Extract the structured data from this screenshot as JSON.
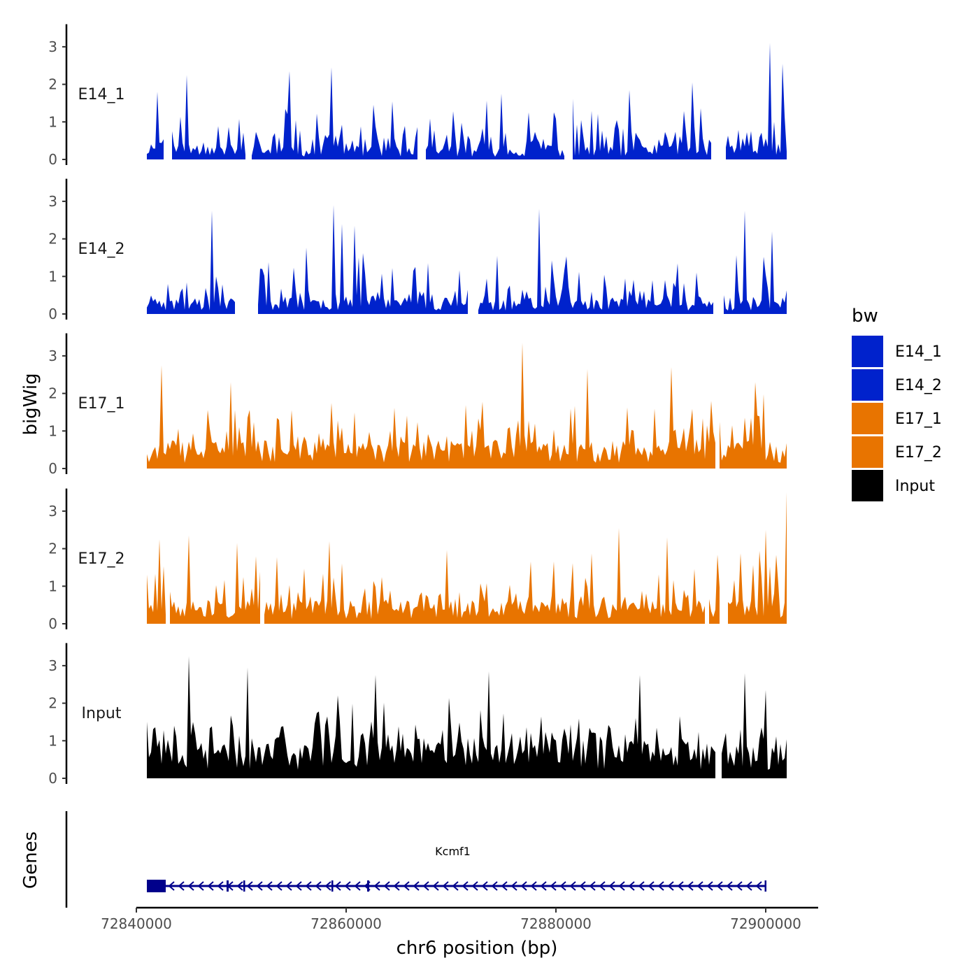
{
  "chart_data": {
    "type": "area",
    "title": "",
    "xlabel": "chr6 position (bp)",
    "ylabel": "bigWig",
    "genes_label": "Genes",
    "x_range": [
      72840000,
      72905000
    ],
    "data_x_range": [
      72841000,
      72902000
    ],
    "x_ticks": [
      72840000,
      72860000,
      72880000,
      72900000
    ],
    "x_tick_labels": [
      "72840000",
      "72860000",
      "72880000",
      "72900000"
    ],
    "y_range": [
      0,
      3.6
    ],
    "y_ticks": [
      0,
      1,
      2,
      3
    ],
    "y_tick_labels": [
      "0",
      "1",
      "2",
      "3"
    ],
    "legend": {
      "title": "bw",
      "position": "right",
      "entries": [
        {
          "label": "E14_1",
          "color": "#0022CC"
        },
        {
          "label": "E14_2",
          "color": "#0022CC"
        },
        {
          "label": "E17_1",
          "color": "#E87400"
        },
        {
          "label": "E17_2",
          "color": "#E87400"
        },
        {
          "label": "Input",
          "color": "#000000"
        }
      ]
    },
    "series": [
      {
        "name": "E14_1",
        "color": "#0022CC",
        "seed": 11,
        "base": 0.3,
        "amp": 1.0,
        "gaps": [
          [
            72842600,
            72843400
          ],
          [
            72850400,
            72851000
          ],
          [
            72858000,
            72858200
          ],
          [
            72866800,
            72867600
          ],
          [
            72880800,
            72881600
          ],
          [
            72894800,
            72896200
          ]
        ],
        "peaks": [
          [
            72842000,
            1.8
          ],
          [
            72844800,
            2.25
          ],
          [
            72854600,
            2.35
          ],
          [
            72858600,
            2.45
          ],
          [
            72874800,
            1.75
          ],
          [
            72887000,
            1.85
          ],
          [
            72893000,
            2.05
          ],
          [
            72900400,
            3.1
          ],
          [
            72901600,
            2.55
          ]
        ]
      },
      {
        "name": "E14_2",
        "color": "#0022CC",
        "seed": 23,
        "base": 0.35,
        "amp": 1.1,
        "gaps": [
          [
            72849400,
            72851600
          ],
          [
            72862800,
            72863000
          ],
          [
            72871600,
            72872600
          ],
          [
            72895000,
            72896000
          ]
        ],
        "peaks": [
          [
            72847200,
            2.75
          ],
          [
            72858800,
            2.9
          ],
          [
            72859600,
            2.4
          ],
          [
            72860800,
            2.35
          ],
          [
            72878400,
            2.8
          ],
          [
            72898000,
            2.75
          ],
          [
            72900600,
            2.2
          ]
        ]
      },
      {
        "name": "E17_1",
        "color": "#E87400",
        "seed": 37,
        "base": 0.6,
        "amp": 1.0,
        "gaps": [
          [
            72895200,
            72895600
          ]
        ],
        "peaks": [
          [
            72842400,
            2.75
          ],
          [
            72849000,
            2.3
          ],
          [
            72876800,
            3.35
          ],
          [
            72883000,
            2.65
          ],
          [
            72891000,
            2.7
          ],
          [
            72899000,
            2.3
          ]
        ]
      },
      {
        "name": "E17_2",
        "color": "#E87400",
        "seed": 51,
        "base": 0.5,
        "amp": 1.1,
        "gaps": [
          [
            72842800,
            72843200
          ],
          [
            72851800,
            72852200
          ],
          [
            72876400,
            72876600
          ],
          [
            72894200,
            72894600
          ],
          [
            72895600,
            72896400
          ]
        ],
        "peaks": [
          [
            72842200,
            2.25
          ],
          [
            72845000,
            2.35
          ],
          [
            72849600,
            2.15
          ],
          [
            72858400,
            2.2
          ],
          [
            72886000,
            2.55
          ],
          [
            72890600,
            2.3
          ],
          [
            72900000,
            2.5
          ],
          [
            72902000,
            3.5
          ]
        ]
      },
      {
        "name": "Input",
        "color": "#000000",
        "seed": 73,
        "base": 0.9,
        "amp": 1.0,
        "gaps": [
          [
            72895300,
            72895700
          ]
        ],
        "peaks": [
          [
            72845000,
            3.25
          ],
          [
            72850600,
            2.95
          ],
          [
            72862800,
            2.75
          ],
          [
            72873600,
            2.85
          ],
          [
            72888000,
            2.75
          ],
          [
            72898000,
            2.8
          ],
          [
            72900000,
            2.35
          ]
        ]
      }
    ],
    "genes": [
      {
        "name": "Kcmf1",
        "start": 72841000,
        "end": 72900000,
        "strand": "-",
        "color": "#00008B",
        "exons": [
          [
            72841000,
            72842800
          ],
          [
            72848600,
            72848800
          ],
          [
            72850200,
            72850300
          ],
          [
            72858600,
            72858700
          ],
          [
            72862000,
            72862200
          ],
          [
            72899900,
            72900000
          ]
        ]
      }
    ]
  }
}
